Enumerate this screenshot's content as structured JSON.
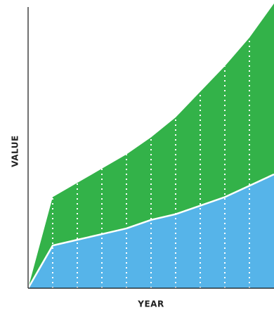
{
  "chart_data": {
    "type": "stacked-area",
    "x_label": "YEAR",
    "y_label": "VALUE",
    "categories": [
      null,
      null,
      null,
      null,
      null,
      null,
      null,
      null,
      null,
      null,
      null
    ],
    "ylim": [
      0,
      100
    ],
    "series": [
      {
        "color": "#56b4e9",
        "values": [
          0,
          15,
          17,
          19,
          21,
          24,
          26,
          29,
          32,
          36,
          40
        ]
      },
      {
        "color": "#33b249",
        "values": [
          0,
          17,
          20,
          23,
          26,
          29,
          34,
          40,
          46,
          52,
          60
        ]
      }
    ]
  }
}
